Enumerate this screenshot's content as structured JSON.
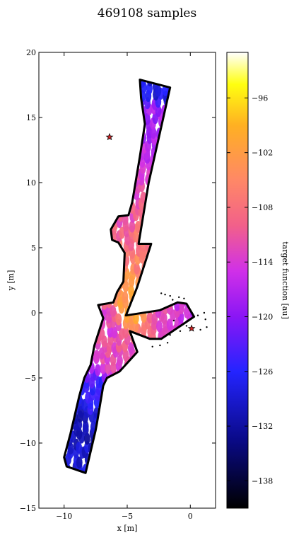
{
  "chart_data": {
    "type": "heatmap",
    "title": "469108 samples",
    "xlabel": "x [m]",
    "ylabel": "y [m]",
    "xlim": [
      -12,
      2
    ],
    "ylim": [
      -15,
      20
    ],
    "x_ticks": [
      -10,
      -5,
      0
    ],
    "y_ticks": [
      -15,
      -10,
      -5,
      0,
      5,
      10,
      15,
      20
    ],
    "colorbar": {
      "label": "target function [au]",
      "range": [
        -141,
        -91
      ],
      "ticks": [
        -138,
        -132,
        -126,
        -120,
        -114,
        -108,
        -102,
        -96
      ],
      "colormap": "gnuplot2"
    },
    "markers": [
      {
        "x": -6.4,
        "y": 13.5,
        "color": "#d62728",
        "symbol": "star"
      },
      {
        "x": 0.1,
        "y": -1.2,
        "color": "#d62728",
        "symbol": "star"
      }
    ],
    "value_samples": [
      {
        "x": -1.9,
        "y": 17.2,
        "v": -128
      },
      {
        "x": -2.2,
        "y": 15.0,
        "v": -118
      },
      {
        "x": -2.8,
        "y": 12.0,
        "v": -117
      },
      {
        "x": -3.2,
        "y": 10.0,
        "v": -113
      },
      {
        "x": -4.6,
        "y": 7.3,
        "v": -111
      },
      {
        "x": -4.0,
        "y": 6.5,
        "v": -108
      },
      {
        "x": -3.8,
        "y": 3.5,
        "v": -106
      },
      {
        "x": -4.3,
        "y": 2.0,
        "v": -103
      },
      {
        "x": -5.0,
        "y": 0.3,
        "v": -101
      },
      {
        "x": -6.6,
        "y": -0.6,
        "v": -113
      },
      {
        "x": -6.3,
        "y": -3.8,
        "v": -112
      },
      {
        "x": -1.9,
        "y": -0.5,
        "v": -112
      },
      {
        "x": -0.2,
        "y": -0.1,
        "v": -116
      },
      {
        "x": -7.3,
        "y": -5.9,
        "v": -125
      },
      {
        "x": -8.6,
        "y": -9.0,
        "v": -130
      }
    ]
  }
}
